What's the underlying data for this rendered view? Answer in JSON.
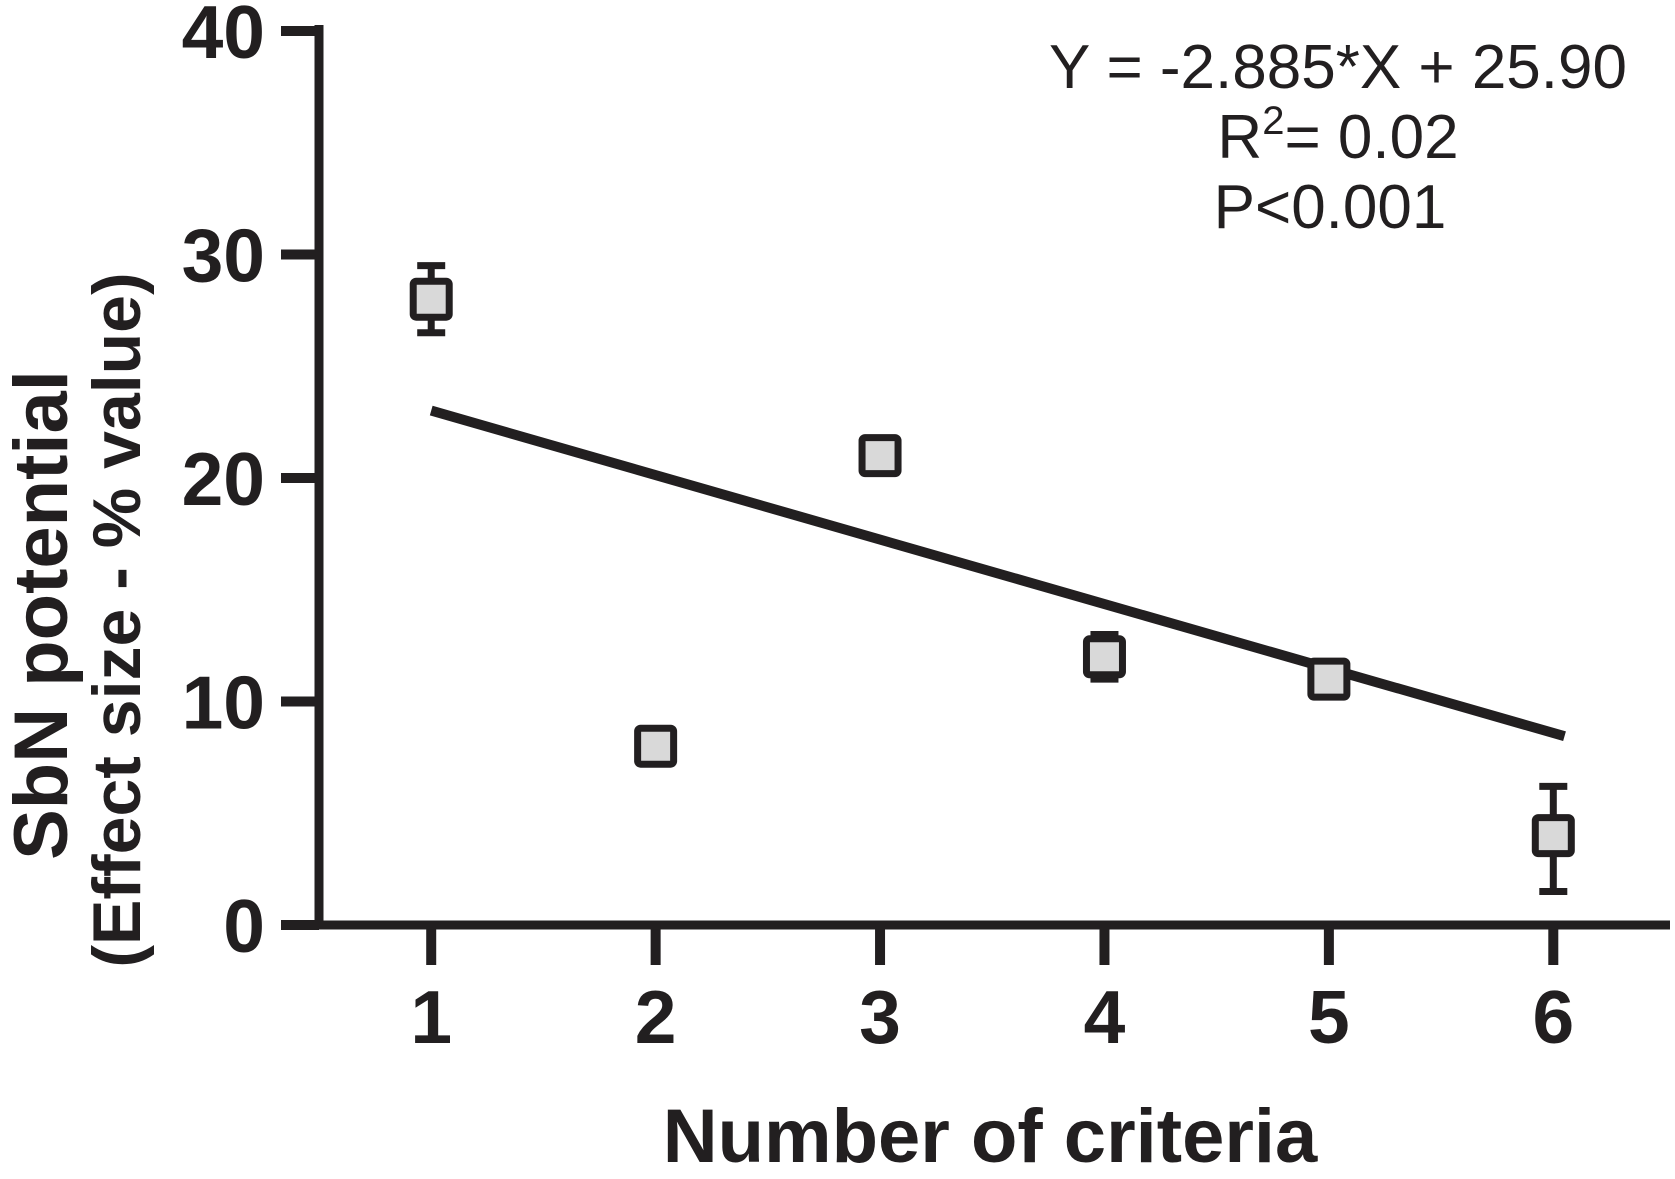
{
  "figure": {
    "background": "#ffffff",
    "ink_color": "#221f20",
    "marker_fill": "#d9d9d9",
    "marker_stroke": "#221f20"
  },
  "chart_data": {
    "type": "scatter",
    "title": "",
    "xlabel": "Number of criteria",
    "ylabel_line1": "SbN potential",
    "ylabel_line2": "(Effect size - % value)",
    "xlim": [
      0.5,
      6.52
    ],
    "ylim": [
      0,
      40
    ],
    "x_ticks": [
      1,
      2,
      3,
      4,
      5,
      6
    ],
    "y_ticks": [
      0,
      10,
      20,
      30,
      40
    ],
    "grid": false,
    "legend": null,
    "points": [
      {
        "x": 1,
        "y": 28,
        "err_lo": 26.5,
        "err_hi": 29.5
      },
      {
        "x": 2,
        "y": 8
      },
      {
        "x": 3,
        "y": 21
      },
      {
        "x": 4,
        "y": 12,
        "err_lo": 11.0,
        "err_hi": 13.0
      },
      {
        "x": 5,
        "y": 11
      },
      {
        "x": 6,
        "y": 4,
        "err_lo": 1.5,
        "err_hi": 6.2
      }
    ],
    "regression": {
      "slope": -2.885,
      "intercept": 25.9,
      "x_start": 1.0,
      "x_end": 6.05
    },
    "annotations": [
      "Y = -2.885*X + 25.90",
      "R²= 0.02",
      "P<0.001"
    ],
    "annotation_r2": {
      "base": "R",
      "sup": "2",
      "rest": "= 0.02"
    }
  }
}
